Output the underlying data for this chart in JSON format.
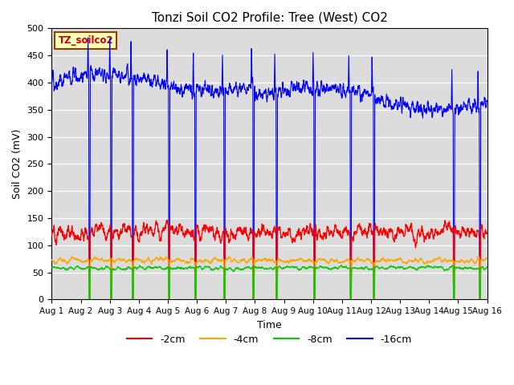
{
  "title": "Tonzi Soil CO2 Profile: Tree (West) CO2",
  "xlabel": "Time",
  "ylabel": "Soil CO2 (mV)",
  "xlim": [
    0,
    15
  ],
  "ylim": [
    0,
    500
  ],
  "yticks": [
    0,
    50,
    100,
    150,
    200,
    250,
    300,
    350,
    400,
    450,
    500
  ],
  "xtick_labels": [
    "Aug 1",
    "Aug 2",
    "Aug 3",
    "Aug 4",
    "Aug 5",
    "Aug 6",
    "Aug 7",
    "Aug 8",
    "Aug 9",
    "Aug 10",
    "Aug 11",
    "Aug 12",
    "Aug 13",
    "Aug 14",
    "Aug 15",
    "Aug 16"
  ],
  "colors": {
    "red": "#ff0000",
    "orange": "#ffa500",
    "green": "#00cc00",
    "blue": "#0000ff"
  },
  "legend_label": "TZ_soilco2",
  "bg_color": "#dcdcdc",
  "spike_days": [
    1.3,
    2.05,
    2.8,
    4.05,
    4.95,
    5.95,
    6.95,
    7.75,
    9.05,
    10.3,
    11.1,
    13.85,
    14.75
  ],
  "n_pts": 3000
}
